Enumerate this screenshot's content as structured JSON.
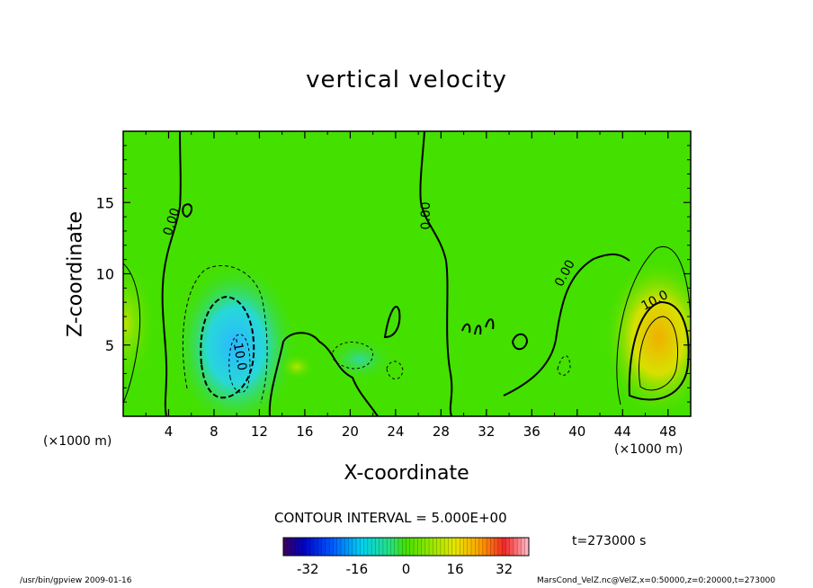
{
  "chart_data": {
    "type": "heatmap",
    "title": "vertical velocity",
    "xlabel": "X-coordinate",
    "ylabel": "Z-coordinate",
    "x_unit_label": "(×1000 m)",
    "xlim": [
      0,
      50
    ],
    "ylim": [
      0,
      20
    ],
    "x_ticks": [
      "4",
      "8",
      "12",
      "16",
      "20",
      "24",
      "28",
      "32",
      "36",
      "40",
      "44",
      "48"
    ],
    "y_ticks": [
      "5",
      "10",
      "15"
    ],
    "contour_interval_label": "CONTOUR INTERVAL = 5.000E+00",
    "contour_labels": [
      "0.00",
      "0.00",
      "0.00",
      "-10.0",
      "10.0"
    ],
    "colorbar": {
      "range": [
        -40,
        40
      ],
      "tick_labels": [
        "-32",
        "-16",
        "0",
        "16",
        "32"
      ]
    },
    "field_features": [
      {
        "kind": "downdraft",
        "x": 10,
        "z": 4,
        "value": -14
      },
      {
        "kind": "updraft",
        "x": 47,
        "z": 5,
        "value": 14
      },
      {
        "kind": "updraft",
        "x": 0.5,
        "z": 8,
        "value": 6
      }
    ],
    "time_label": "t=273000 s",
    "colors": {
      "background_field": "#44e000",
      "zero_contour": "#000000"
    }
  },
  "footer": {
    "left": "/usr/bin/gpview  2009-01-16",
    "right": "MarsCond_VelZ.nc@VelZ,x=0:50000,z=0:20000,t=273000"
  }
}
